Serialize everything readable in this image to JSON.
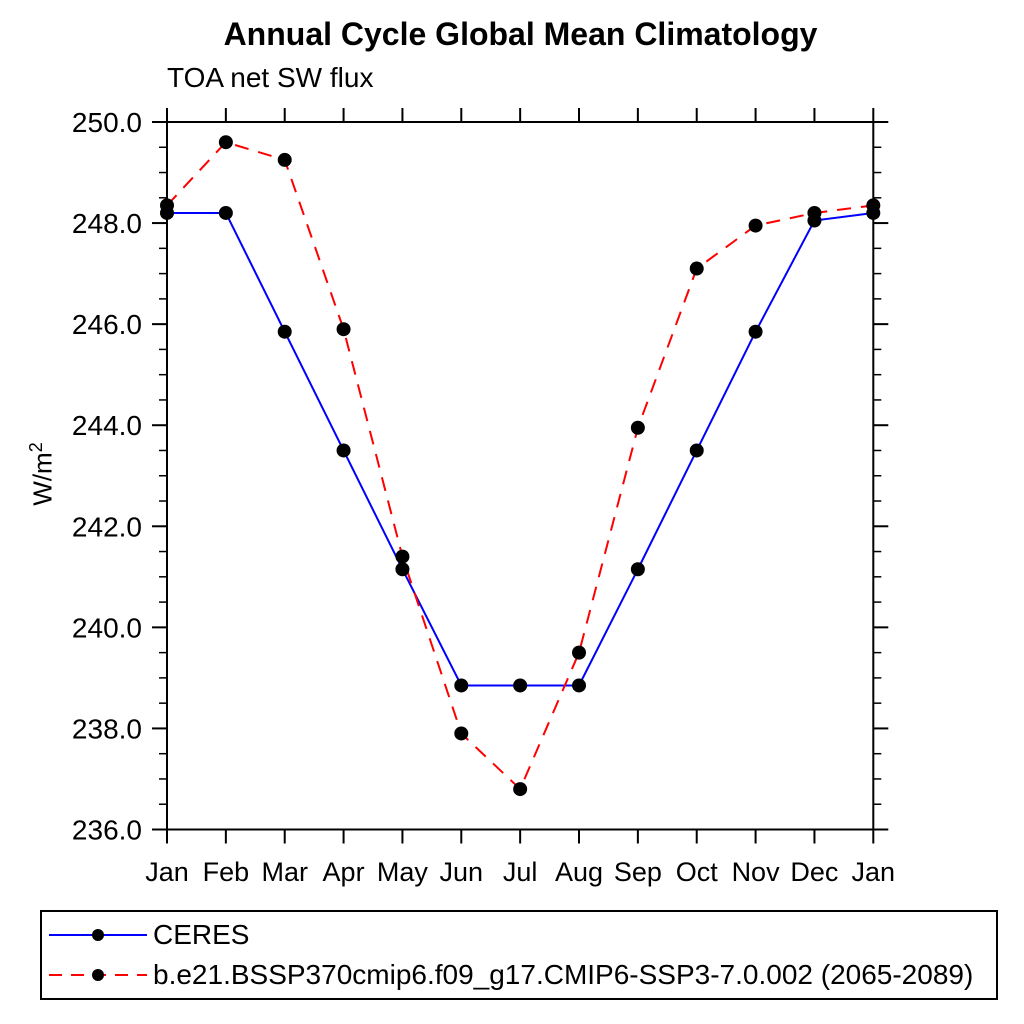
{
  "chart_data": {
    "type": "line",
    "title": "Annual Cycle Global Mean Climatology",
    "subtitle": "TOA net SW flux",
    "ylabel": {
      "base": "W/m",
      "sup": "2"
    },
    "ylabel_plain": "W/m2",
    "categories": [
      "Jan",
      "Feb",
      "Mar",
      "Apr",
      "May",
      "Jun",
      "Jul",
      "Aug",
      "Sep",
      "Oct",
      "Nov",
      "Dec",
      "Jan"
    ],
    "ylim": [
      236.0,
      250.0
    ],
    "y_ticks": {
      "major_values": [
        250,
        248,
        246,
        244,
        242,
        240,
        238,
        236
      ],
      "major_labels": [
        "250.0",
        "248.0",
        "246.0",
        "244.0",
        "242.0",
        "240.0",
        "238.0",
        "236.0"
      ],
      "minor_step": 0.5
    },
    "grid": false,
    "legend_position": "bottom-left-box",
    "marker": "filled-circle",
    "marker_color": "#000000",
    "frame_color": "#000000",
    "series": [
      {
        "name": "CERES",
        "color": "#0000ff",
        "line_style": "solid",
        "values": [
          248.2,
          248.2,
          245.85,
          243.5,
          241.15,
          238.85,
          238.85,
          238.85,
          241.15,
          243.5,
          245.85,
          248.05,
          248.2
        ]
      },
      {
        "name": "b.e21.BSSP370cmip6.f09_g17.CMIP6-SSP3-7.0.002 (2065-2089)",
        "color": "#ff0000",
        "line_style": "dashed",
        "values": [
          248.35,
          249.6,
          249.25,
          245.9,
          241.4,
          237.9,
          236.8,
          239.5,
          243.95,
          247.1,
          247.95,
          248.2,
          248.35
        ]
      }
    ]
  }
}
